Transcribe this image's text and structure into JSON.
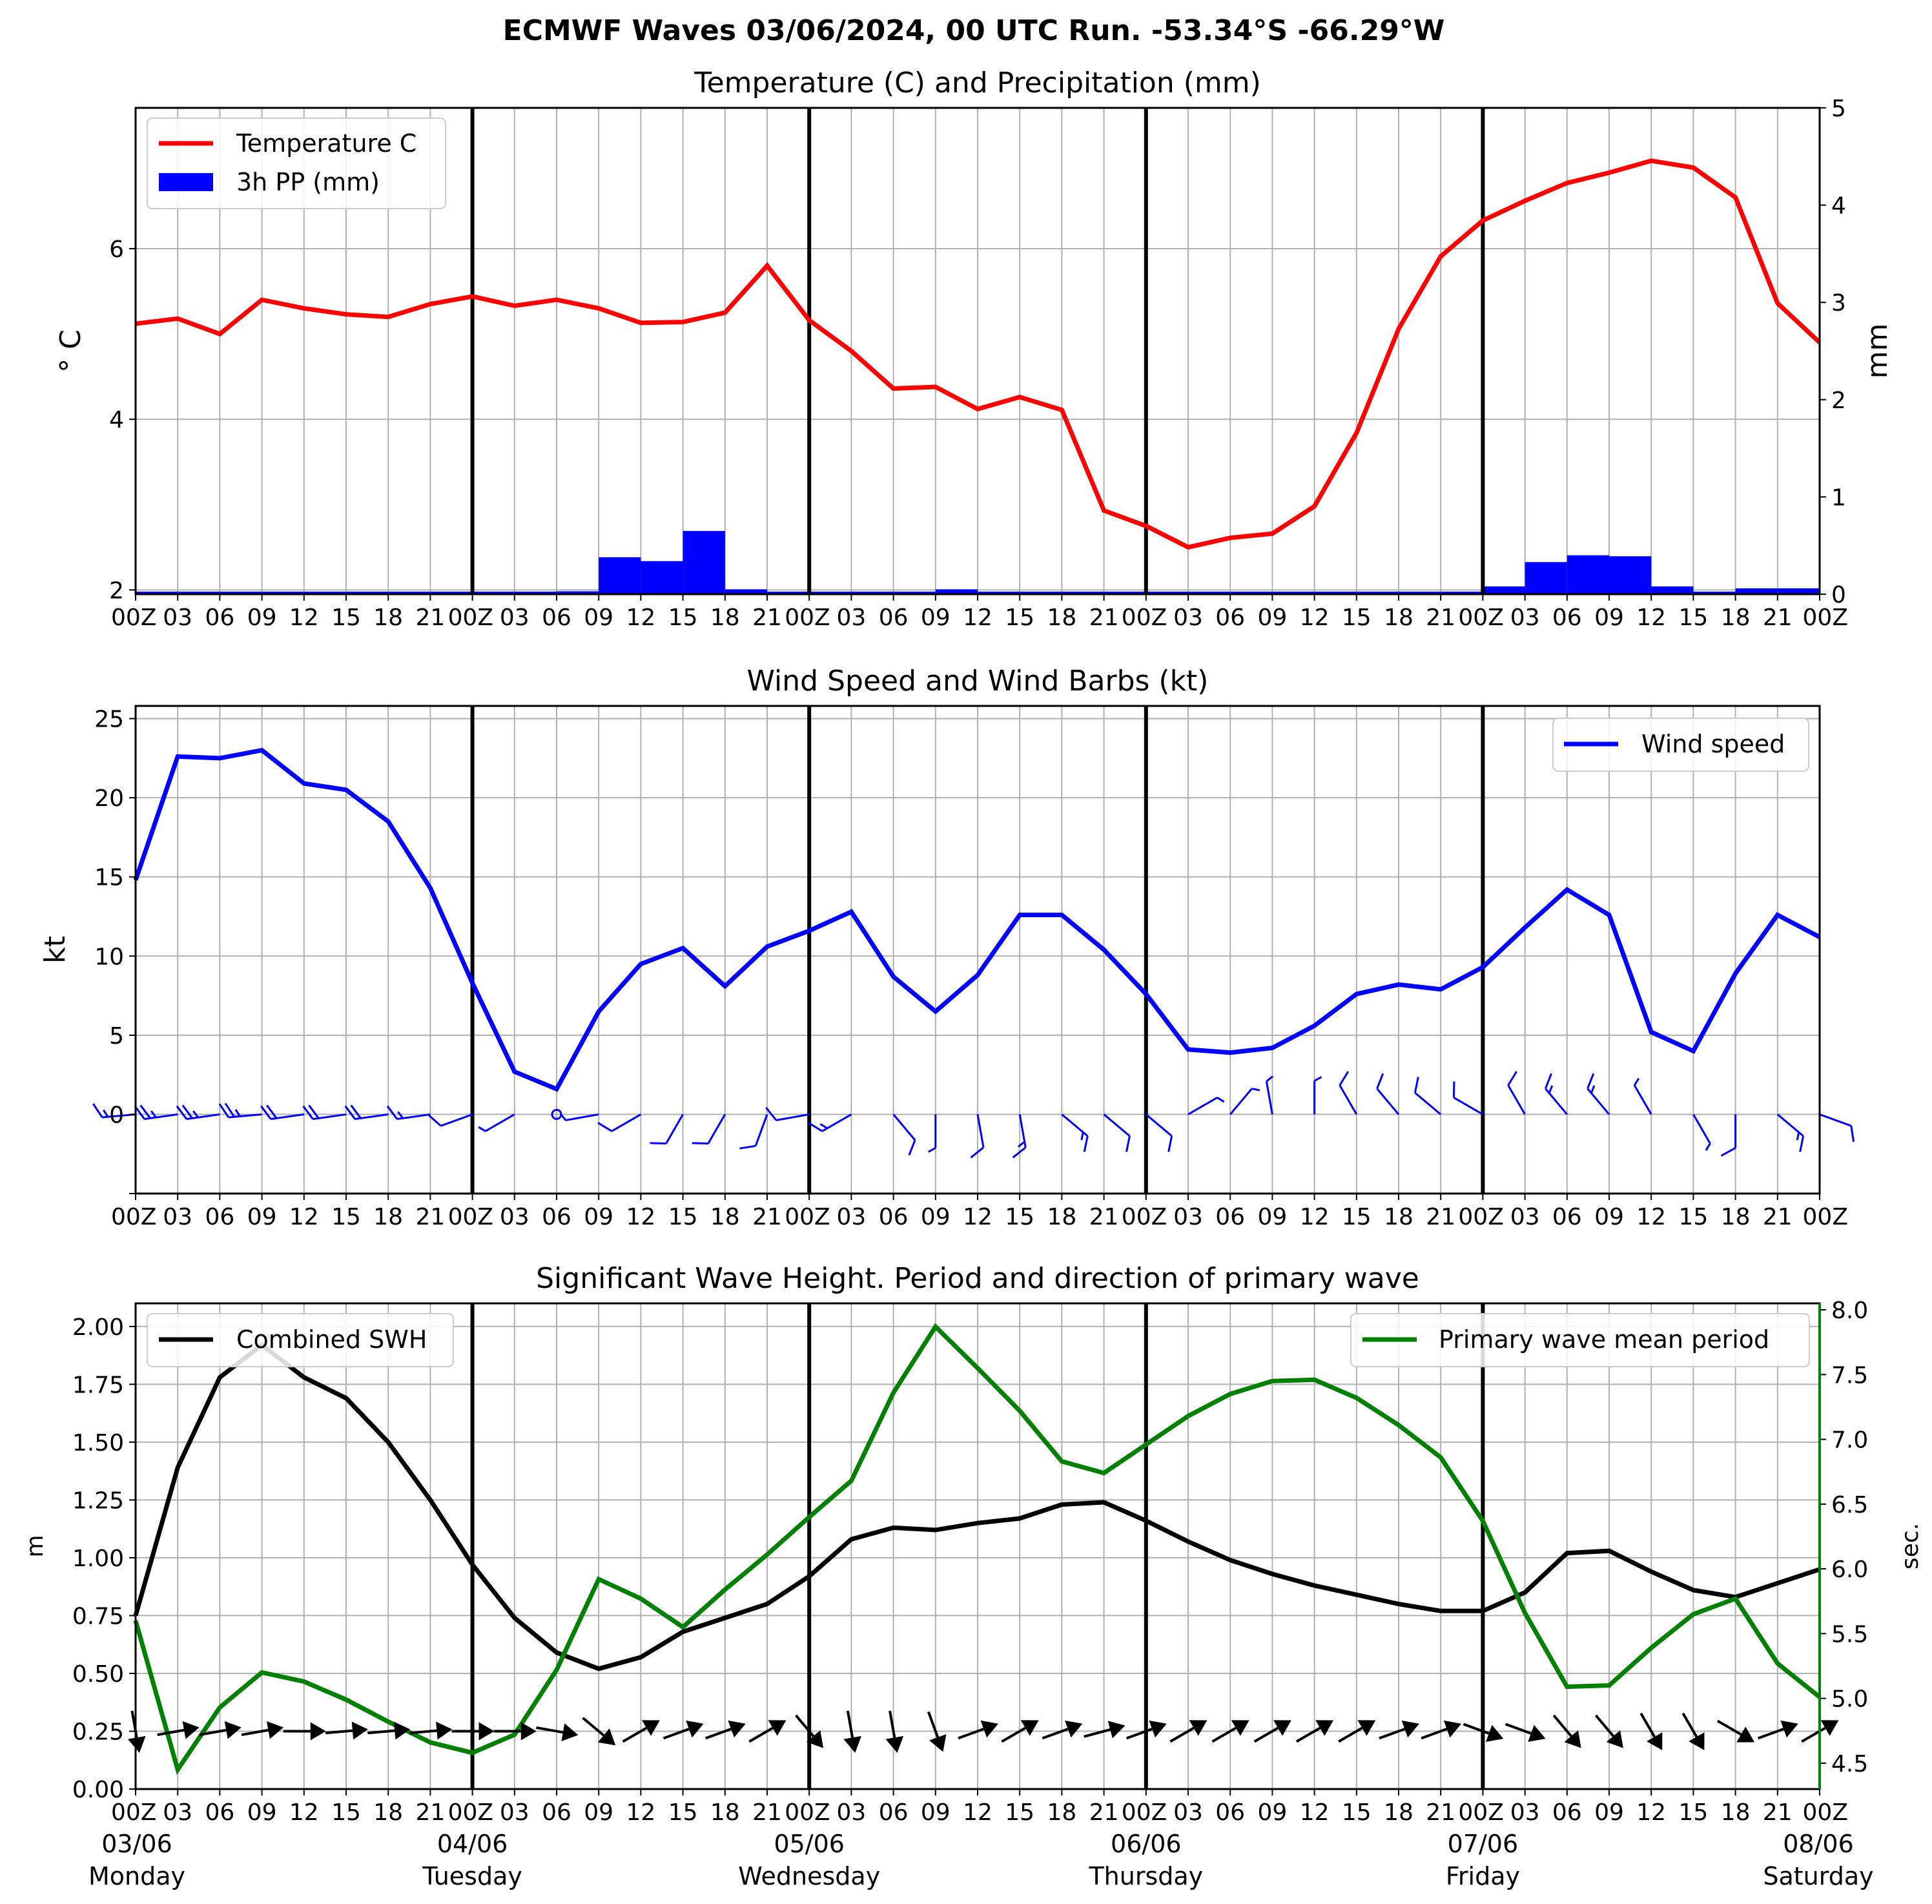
{
  "suptitle": "ECMWF Waves 03/06/2024, 00 UTC Run. -53.34°S -66.29°W",
  "colors": {
    "temperature": "#ff0000",
    "precip": "#0000ff",
    "wind": "#0000ff",
    "swh": "#000000",
    "period": "#008000",
    "grid": "#b0b0b0"
  },
  "time_axis": {
    "step_hours": 3,
    "tick_labels": [
      "00Z",
      "03",
      "06",
      "09",
      "12",
      "15",
      "18",
      "21",
      "00Z",
      "03",
      "06",
      "09",
      "12",
      "15",
      "18",
      "21",
      "00Z",
      "03",
      "06",
      "09",
      "12",
      "15",
      "18",
      "21",
      "00Z",
      "03",
      "06",
      "09",
      "12",
      "15",
      "18",
      "21",
      "00Z",
      "03",
      "06",
      "09",
      "12",
      "15",
      "18",
      "21",
      "00Z"
    ],
    "day_labels": [
      {
        "date": "03/06",
        "day": "Monday"
      },
      {
        "date": "04/06",
        "day": "Tuesday"
      },
      {
        "date": "05/06",
        "day": "Wednesday"
      },
      {
        "date": "06/06",
        "day": "Thursday"
      },
      {
        "date": "07/06",
        "day": "Friday"
      },
      {
        "date": "08/06",
        "day": "Saturday"
      }
    ]
  },
  "chart_data": [
    {
      "type": "line",
      "title": "Temperature (C) and Precipitation (mm)",
      "ylabel": "$^\\circ$C",
      "ylabel_display": "° C",
      "ylabel_right": "mm",
      "ylim": [
        1.95,
        7.65
      ],
      "yticks": [
        2,
        4,
        6
      ],
      "ylim_right": [
        0,
        5
      ],
      "yticks_right": [
        0,
        1,
        2,
        3,
        4,
        5
      ],
      "legend": {
        "position": "top-left",
        "entries": [
          "Temperature C",
          "3h PP (mm)"
        ]
      },
      "series": [
        {
          "name": "Temperature C",
          "type": "line",
          "values": [
            5.12,
            5.18,
            5.0,
            5.4,
            5.3,
            5.23,
            5.2,
            5.35,
            5.44,
            5.33,
            5.4,
            5.3,
            5.13,
            5.14,
            5.25,
            5.8,
            5.16,
            4.8,
            4.36,
            4.38,
            4.12,
            4.26,
            4.11,
            2.93,
            2.75,
            2.5,
            2.61,
            2.66,
            2.98,
            3.84,
            5.06,
            5.91,
            6.33,
            6.56,
            6.77,
            6.89,
            7.03,
            6.95,
            6.6,
            5.36,
            4.9
          ]
        },
        {
          "name": "3h PP (mm)",
          "type": "bar",
          "values": [
            0,
            0,
            0,
            0,
            0,
            0,
            0.01,
            0,
            0,
            0,
            0.03,
            0.38,
            0.34,
            0.65,
            0.05,
            0,
            0.01,
            0.01,
            0.02,
            0.05,
            0,
            0,
            0.01,
            0,
            0,
            0,
            0,
            0,
            0,
            0,
            0,
            0,
            0.08,
            0.33,
            0.4,
            0.39,
            0.08,
            0,
            0.06,
            0.06
          ]
        }
      ]
    },
    {
      "type": "line",
      "title": "Wind Speed and Wind Barbs (kt)",
      "ylabel": "kt",
      "ylim": [
        -5,
        25.8
      ],
      "yticks": [
        0,
        5,
        10,
        15,
        20,
        25
      ],
      "legend": {
        "position": "top-right",
        "entries": [
          "Wind speed"
        ]
      },
      "series": [
        {
          "name": "Wind speed",
          "values": [
            14.8,
            22.6,
            22.5,
            23.0,
            20.9,
            20.5,
            18.5,
            14.3,
            8.3,
            2.7,
            1.6,
            6.5,
            9.5,
            10.5,
            8.1,
            10.6,
            11.6,
            12.8,
            8.7,
            6.5,
            8.8,
            12.6,
            12.6,
            10.4,
            7.6,
            4.1,
            3.9,
            4.2,
            5.6,
            7.6,
            8.2,
            7.9,
            9.3,
            11.8,
            14.2,
            12.6,
            5.2,
            4.0,
            8.9,
            12.6,
            11.2
          ]
        }
      ],
      "wind_barbs": {
        "from_direction_deg": [
          265,
          262,
          262,
          265,
          262,
          262,
          262,
          262,
          250,
          240,
          0,
          260,
          240,
          210,
          210,
          200,
          260,
          240,
          140,
          180,
          170,
          170,
          130,
          130,
          130,
          60,
          40,
          350,
          0,
          330,
          320,
          310,
          300,
          330,
          320,
          320,
          330,
          150,
          180,
          130,
          110
        ]
      }
    },
    {
      "type": "line",
      "title": "Significant Wave Height. Period and direction of primary wave",
      "ylabel": "m",
      "ylabel_right": "sec.",
      "ylim": [
        0,
        2.1
      ],
      "yticks": [
        0.0,
        0.25,
        0.5,
        0.75,
        1.0,
        1.25,
        1.5,
        1.75,
        2.0
      ],
      "ylim_right": [
        4.3,
        8.05
      ],
      "yticks_right": [
        4.5,
        5.0,
        5.5,
        6.0,
        6.5,
        7.0,
        7.5,
        8.0
      ],
      "legend": {
        "position": "top-left / top-right",
        "entries": [
          "Combined SWH",
          "Primary wave mean period"
        ]
      },
      "series": [
        {
          "name": "Combined SWH",
          "axis": "left",
          "values": [
            0.75,
            1.39,
            1.78,
            1.92,
            1.78,
            1.69,
            1.5,
            1.25,
            0.97,
            0.74,
            0.59,
            0.52,
            0.57,
            0.68,
            0.74,
            0.8,
            0.92,
            1.08,
            1.13,
            1.12,
            1.15,
            1.17,
            1.23,
            1.24,
            1.16,
            1.07,
            0.99,
            0.93,
            0.88,
            0.84,
            0.8,
            0.77,
            0.77,
            0.85,
            1.02,
            1.03,
            0.94,
            0.86,
            0.83,
            0.89,
            0.95
          ]
        },
        {
          "name": "Primary wave mean period",
          "axis": "right",
          "values": [
            5.6,
            4.45,
            4.93,
            5.2,
            5.13,
            4.99,
            4.82,
            4.66,
            4.58,
            4.72,
            5.22,
            5.92,
            5.77,
            5.55,
            5.84,
            6.11,
            6.4,
            6.68,
            7.36,
            7.87,
            7.55,
            7.22,
            6.83,
            6.74,
            6.96,
            7.18,
            7.35,
            7.45,
            7.46,
            7.32,
            7.11,
            6.86,
            6.37,
            5.66,
            5.09,
            5.1,
            5.39,
            5.65,
            5.77,
            5.27,
            5.01
          ]
        }
      ],
      "wave_direction_arrows": {
        "towards_deg": [
          170,
          80,
          80,
          80,
          90,
          85,
          85,
          85,
          90,
          90,
          100,
          130,
          60,
          70,
          70,
          60,
          140,
          170,
          170,
          160,
          70,
          60,
          70,
          75,
          70,
          60,
          60,
          60,
          60,
          60,
          70,
          70,
          110,
          110,
          140,
          140,
          150,
          150,
          120,
          70,
          60
        ]
      }
    }
  ]
}
